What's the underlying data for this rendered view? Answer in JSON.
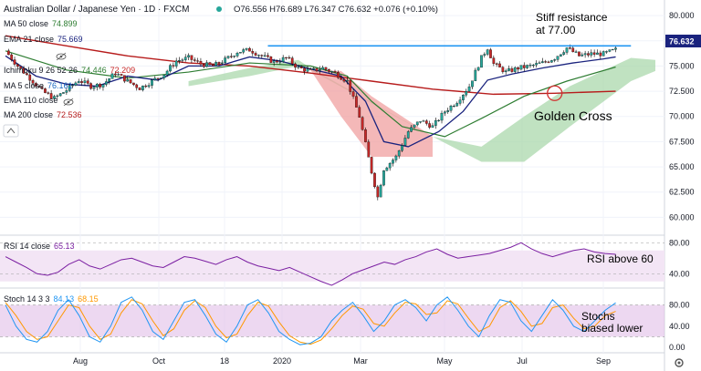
{
  "header": {
    "symbol": "Australian Dollar / Japanese Yen · 1D · FXCM",
    "ohlc": "O76.556 H76.689 L76.347 C76.632 +0.076 (+0.10%)",
    "dot_color": "#26a69a"
  },
  "legend": [
    {
      "name": "MA 50 close",
      "value": "74.899",
      "color": "#2e7d32"
    },
    {
      "name": "EMA 21 close",
      "value": "75.669",
      "color": "#1a237e"
    },
    {
      "name": "",
      "value": "",
      "color": "#7e57c2"
    },
    {
      "name": "Ichimoku 9 26 52 26",
      "value": "74.446",
      "value2": "72.209",
      "color": "#2e7d32",
      "color2": "#c62828"
    },
    {
      "name": "MA 5 close",
      "value": "76.161",
      "color": "#1565c0"
    },
    {
      "name": "EMA 110 close",
      "value": "",
      "color": "#9e9e9e"
    },
    {
      "name": "MA 200 close",
      "value": "72.536",
      "color": "#b71c1c"
    }
  ],
  "last_price": "76.632",
  "annotations": {
    "resistance": [
      "Stiff resistance",
      "at 77.00"
    ],
    "cross": "Golden Cross",
    "rsi_note": "RSI above 60",
    "stoch_note": [
      "Stochs",
      "biased lower"
    ]
  },
  "rsi_legend": {
    "name": "RSI 14 close",
    "value": "65.13"
  },
  "stoch_legend": {
    "name": "Stoch 14 3 3",
    "k": "84.13",
    "d": "68.15"
  },
  "colors": {
    "up": "#26a69a",
    "down": "#c62828",
    "ema21": "#1a237e",
    "ma50": "#2e7d32",
    "ma200": "#b71c1c",
    "resistance": "#2196f3",
    "cloud_green": "#a5d6a7",
    "cloud_red": "#ef9a9a",
    "rsi": "#7b1fa2",
    "stoch_k": "#2196f3",
    "stoch_d": "#ff9800",
    "band": "#e1bee7",
    "price_tag": "#1a237e"
  },
  "chart_data": [
    {
      "type": "candlestick",
      "title": "Australian Dollar / Japanese Yen · 1D · FXCM",
      "x_ticks": [
        "Aug",
        "Oct",
        "18",
        "2020",
        "Mar",
        "May",
        "Jul",
        "Sep"
      ],
      "y_ticks": [
        "80.000",
        "77.500",
        "75.000",
        "72.500",
        "70.000",
        "67.500",
        "65.000",
        "62.500",
        "60.000"
      ],
      "ylim": [
        58.5,
        81.0
      ],
      "close_path": [
        [
          0,
          76.5
        ],
        [
          4,
          75.0
        ],
        [
          8,
          73.8
        ],
        [
          12,
          72.5
        ],
        [
          16,
          71.8
        ],
        [
          20,
          72.6
        ],
        [
          24,
          73.6
        ],
        [
          28,
          73.0
        ],
        [
          32,
          73.2
        ],
        [
          36,
          74.3
        ],
        [
          40,
          73.5
        ],
        [
          44,
          72.8
        ],
        [
          48,
          73.5
        ],
        [
          52,
          74.2
        ],
        [
          56,
          75.5
        ],
        [
          60,
          75.8
        ],
        [
          64,
          75.2
        ],
        [
          68,
          75.0
        ],
        [
          72,
          75.6
        ],
        [
          76,
          76.4
        ],
        [
          80,
          76.6
        ],
        [
          84,
          76.0
        ],
        [
          88,
          75.4
        ],
        [
          92,
          75.8
        ],
        [
          96,
          74.8
        ],
        [
          100,
          74.5
        ],
        [
          104,
          74.8
        ],
        [
          108,
          74.3
        ],
        [
          112,
          73.5
        ],
        [
          116,
          70.0
        ],
        [
          120,
          64.5
        ],
        [
          122,
          62.0
        ],
        [
          124,
          64.8
        ],
        [
          128,
          66.0
        ],
        [
          132,
          68.5
        ],
        [
          136,
          69.6
        ],
        [
          140,
          69.0
        ],
        [
          144,
          70.5
        ],
        [
          148,
          71.5
        ],
        [
          152,
          73.0
        ],
        [
          156,
          75.8
        ],
        [
          158,
          76.8
        ],
        [
          160,
          75.2
        ],
        [
          164,
          74.4
        ],
        [
          168,
          74.8
        ],
        [
          172,
          75.0
        ],
        [
          176,
          75.3
        ],
        [
          180,
          75.8
        ],
        [
          184,
          76.8
        ],
        [
          188,
          76.0
        ],
        [
          192,
          76.2
        ],
        [
          196,
          76.2
        ],
        [
          200,
          76.6
        ]
      ],
      "ema21": [
        [
          0,
          76.0
        ],
        [
          10,
          74.0
        ],
        [
          20,
          73.2
        ],
        [
          30,
          73.0
        ],
        [
          40,
          74.0
        ],
        [
          50,
          73.6
        ],
        [
          60,
          75.0
        ],
        [
          70,
          75.0
        ],
        [
          80,
          75.9
        ],
        [
          90,
          75.5
        ],
        [
          100,
          74.7
        ],
        [
          110,
          74.0
        ],
        [
          118,
          71.5
        ],
        [
          124,
          67.5
        ],
        [
          132,
          67.0
        ],
        [
          142,
          68.5
        ],
        [
          150,
          70.5
        ],
        [
          158,
          73.6
        ],
        [
          166,
          74.2
        ],
        [
          176,
          74.8
        ],
        [
          186,
          75.3
        ],
        [
          196,
          75.7
        ],
        [
          200,
          75.9
        ]
      ],
      "ma50": [
        [
          0,
          76.5
        ],
        [
          20,
          74.6
        ],
        [
          40,
          73.8
        ],
        [
          60,
          74.4
        ],
        [
          80,
          75.3
        ],
        [
          100,
          75.0
        ],
        [
          112,
          74.0
        ],
        [
          120,
          71.5
        ],
        [
          130,
          69.0
        ],
        [
          144,
          68.0
        ],
        [
          156,
          69.8
        ],
        [
          170,
          72.0
        ],
        [
          184,
          73.5
        ],
        [
          200,
          74.9
        ]
      ],
      "ma200": [
        [
          0,
          78.0
        ],
        [
          20,
          77.0
        ],
        [
          40,
          76.0
        ],
        [
          60,
          75.3
        ],
        [
          80,
          75.0
        ],
        [
          100,
          74.3
        ],
        [
          120,
          73.5
        ],
        [
          140,
          72.7
        ],
        [
          160,
          72.2
        ],
        [
          180,
          72.3
        ],
        [
          200,
          72.5
        ]
      ],
      "cloud_green": [
        [
          60,
          73.5,
          73.0
        ],
        [
          80,
          74.8,
          74.0
        ],
        [
          96,
          75.6,
          75.0
        ],
        [
          100,
          74.8,
          74.6
        ],
        [
          140,
          68.0,
          68.0
        ],
        [
          156,
          67.0,
          65.5
        ],
        [
          170,
          70.0,
          65.5
        ],
        [
          185,
          73.0,
          69.0
        ],
        [
          205,
          75.8,
          73.5
        ],
        [
          213,
          75.6,
          74.5
        ]
      ],
      "cloud_red": [
        [
          100,
          74.6,
          74.6
        ],
        [
          110,
          74.5,
          70.0
        ],
        [
          120,
          72.0,
          66.0
        ],
        [
          130,
          70.0,
          66.0
        ],
        [
          140,
          68.0,
          66.0
        ]
      ],
      "resistance": 77.0,
      "golden_cross": [
        180,
        72.3
      ]
    },
    {
      "type": "line",
      "title": "RSI 14 close",
      "y_ticks": [
        "80.00",
        "40.00"
      ],
      "ylim": [
        25,
        85
      ],
      "values": [
        62,
        55,
        48,
        40,
        38,
        42,
        52,
        58,
        50,
        46,
        52,
        58,
        60,
        55,
        50,
        48,
        55,
        62,
        60,
        56,
        52,
        58,
        62,
        55,
        50,
        47,
        44,
        48,
        42,
        36,
        30,
        25,
        32,
        40,
        45,
        50,
        55,
        52,
        58,
        62,
        68,
        72,
        65,
        60,
        62,
        64,
        66,
        70,
        74,
        80,
        72,
        66,
        62,
        66,
        70,
        72,
        68,
        66,
        65
      ],
      "band": [
        30,
        70
      ]
    },
    {
      "type": "line",
      "title": "Stoch 14 3 3",
      "y_ticks": [
        "80.00",
        "40.00",
        "0.00"
      ],
      "ylim": [
        -5,
        105
      ],
      "k": [
        80,
        40,
        15,
        10,
        30,
        70,
        90,
        60,
        20,
        10,
        40,
        85,
        95,
        70,
        30,
        15,
        50,
        85,
        90,
        60,
        25,
        10,
        40,
        80,
        90,
        65,
        30,
        15,
        5,
        8,
        20,
        50,
        70,
        85,
        60,
        30,
        50,
        80,
        90,
        75,
        50,
        80,
        95,
        70,
        40,
        20,
        60,
        90,
        85,
        50,
        30,
        60,
        90,
        70,
        40,
        30,
        50,
        70,
        84
      ],
      "d": [
        85,
        60,
        30,
        15,
        20,
        50,
        80,
        75,
        40,
        15,
        25,
        65,
        90,
        82,
        50,
        22,
        35,
        70,
        88,
        75,
        40,
        18,
        25,
        60,
        85,
        78,
        48,
        22,
        10,
        6,
        14,
        35,
        60,
        78,
        72,
        45,
        40,
        65,
        85,
        82,
        62,
        65,
        88,
        82,
        55,
        30,
        40,
        75,
        88,
        68,
        40,
        45,
        75,
        80,
        55,
        35,
        40,
        60,
        68
      ],
      "band": [
        20,
        80
      ]
    }
  ]
}
